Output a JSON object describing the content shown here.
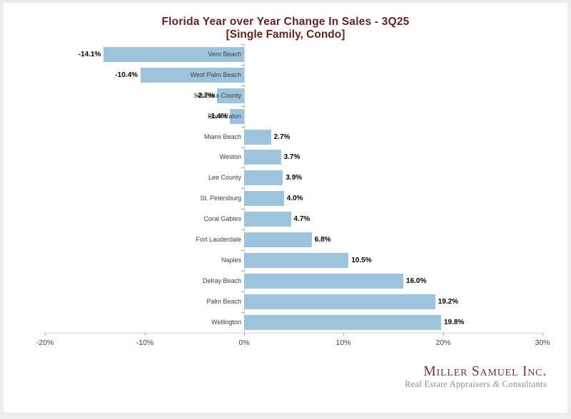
{
  "title": {
    "line1": "Florida Year over Year Change In Sales - 3Q25",
    "line2": "[Single Family, Condo]"
  },
  "chart_data": {
    "type": "bar",
    "orientation": "horizontal",
    "title": "Florida Year over Year Change In Sales - 3Q25",
    "subtitle": "[Single Family, Condo]",
    "categories": [
      "Vero Beach",
      "West Palm Beach",
      "Sarasota County",
      "Boca Raton",
      "Miami Beach",
      "Weston",
      "Lee County",
      "St. Petersburg",
      "Coral Gables",
      "Fort Lauderdale",
      "Naples",
      "Delray Beach",
      "Palm Beach",
      "Wellington"
    ],
    "values": [
      -14.1,
      -10.4,
      -2.7,
      -1.4,
      2.7,
      3.7,
      3.9,
      4.0,
      4.7,
      6.8,
      10.5,
      16.0,
      19.2,
      19.8
    ],
    "value_labels": [
      "-14.1%",
      "-10.4%",
      "-2.7%",
      "-1.4%",
      "2.7%",
      "3.7%",
      "3.9%",
      "4.0%",
      "4.7%",
      "6.8%",
      "10.5%",
      "16.0%",
      "19.2%",
      "19.8%"
    ],
    "xlim": [
      -20,
      30
    ],
    "x_tick_values": [
      -20,
      -10,
      0,
      10,
      20,
      30
    ],
    "x_tick_labels": [
      "-20%",
      "-10%",
      "0%",
      "10%",
      "20%",
      "30%"
    ],
    "bar_color": "#9DC3DD",
    "grid": false,
    "legend": false
  },
  "logo": {
    "name": "Miller Samuel Inc.",
    "tagline_pre": "Real Estate Appraisers ",
    "tagline_amp": "&",
    "tagline_post": " Consultants"
  },
  "colors": {
    "title": "#632423",
    "bar": "#9DC3DD",
    "frame_background": "#ededed",
    "panel_background": "#ffffff",
    "logo_name": "#7e2d38",
    "logo_tagline": "#8f8f8f"
  }
}
